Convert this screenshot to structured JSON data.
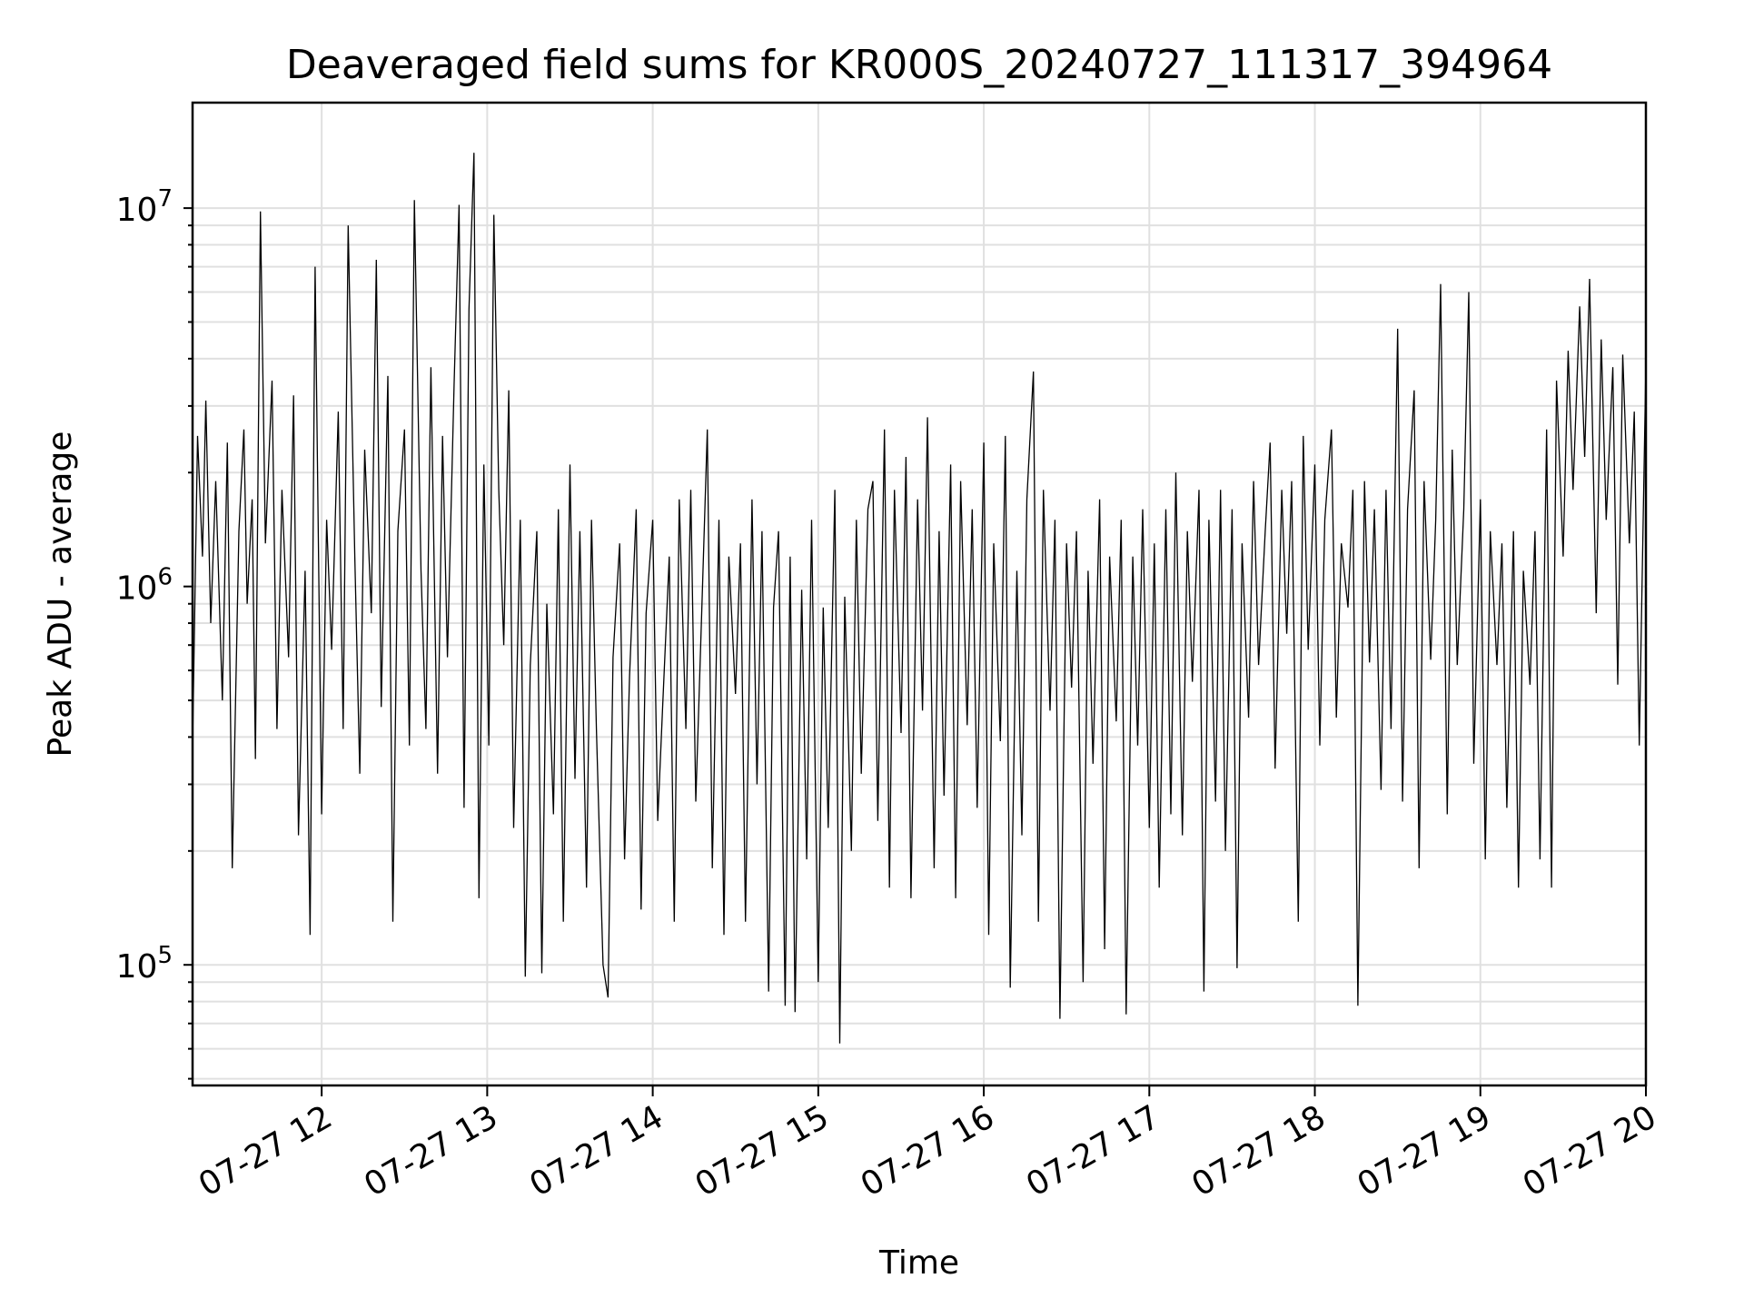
{
  "chart_data": {
    "type": "line",
    "title": "Deaveraged field sums for KR000S_20240727_111317_394964",
    "xlabel": "Time",
    "ylabel": "Peak ADU - average",
    "yscale": "log",
    "xlim": [
      11.22,
      20.0
    ],
    "ylim": [
      48000,
      19000000
    ],
    "grid": true,
    "x_ticks": [
      {
        "value": 12,
        "label": "07-27 12"
      },
      {
        "value": 13,
        "label": "07-27 13"
      },
      {
        "value": 14,
        "label": "07-27 14"
      },
      {
        "value": 15,
        "label": "07-27 15"
      },
      {
        "value": 16,
        "label": "07-27 16"
      },
      {
        "value": 17,
        "label": "07-27 17"
      },
      {
        "value": 18,
        "label": "07-27 18"
      },
      {
        "value": 19,
        "label": "07-27 19"
      },
      {
        "value": 20,
        "label": "07-27 20"
      }
    ],
    "y_ticks": [
      {
        "value": 100000,
        "base": "10",
        "exp": "5"
      },
      {
        "value": 1000000,
        "base": "10",
        "exp": "6"
      },
      {
        "value": 10000000,
        "base": "10",
        "exp": "7"
      }
    ],
    "series": [
      {
        "color": "#000000",
        "x": [
          11.22,
          11.25,
          11.28,
          11.3,
          11.33,
          11.36,
          11.4,
          11.43,
          11.46,
          11.5,
          11.53,
          11.55,
          11.58,
          11.6,
          11.63,
          11.66,
          11.7,
          11.73,
          11.76,
          11.8,
          11.83,
          11.86,
          11.9,
          11.93,
          11.96,
          12.0,
          12.03,
          12.06,
          12.1,
          12.13,
          12.16,
          12.2,
          12.23,
          12.26,
          12.3,
          12.33,
          12.36,
          12.4,
          12.43,
          12.46,
          12.5,
          12.53,
          12.56,
          12.6,
          12.63,
          12.66,
          12.7,
          12.73,
          12.76,
          12.8,
          12.83,
          12.86,
          12.89,
          12.92,
          12.95,
          12.98,
          13.01,
          13.04,
          13.07,
          13.1,
          13.13,
          13.16,
          13.2,
          13.23,
          13.26,
          13.3,
          13.33,
          13.36,
          13.4,
          13.43,
          13.46,
          13.5,
          13.53,
          13.56,
          13.6,
          13.63,
          13.66,
          13.7,
          13.73,
          13.76,
          13.8,
          13.83,
          13.86,
          13.9,
          13.93,
          13.96,
          14.0,
          14.03,
          14.06,
          14.1,
          14.13,
          14.16,
          14.2,
          14.23,
          14.26,
          14.3,
          14.33,
          14.36,
          14.4,
          14.43,
          14.46,
          14.5,
          14.53,
          14.56,
          14.6,
          14.63,
          14.66,
          14.7,
          14.73,
          14.76,
          14.8,
          14.83,
          14.86,
          14.9,
          14.93,
          14.96,
          15.0,
          15.03,
          15.06,
          15.1,
          15.13,
          15.16,
          15.2,
          15.23,
          15.26,
          15.3,
          15.33,
          15.36,
          15.4,
          15.43,
          15.46,
          15.5,
          15.53,
          15.56,
          15.6,
          15.63,
          15.66,
          15.7,
          15.73,
          15.76,
          15.8,
          15.83,
          15.86,
          15.9,
          15.93,
          15.96,
          16.0,
          16.03,
          16.06,
          16.1,
          16.13,
          16.16,
          16.2,
          16.23,
          16.26,
          16.3,
          16.33,
          16.36,
          16.4,
          16.43,
          16.46,
          16.5,
          16.53,
          16.56,
          16.6,
          16.63,
          16.66,
          16.7,
          16.73,
          16.76,
          16.8,
          16.83,
          16.86,
          16.9,
          16.93,
          16.96,
          17.0,
          17.03,
          17.06,
          17.1,
          17.13,
          17.16,
          17.2,
          17.23,
          17.26,
          17.3,
          17.33,
          17.36,
          17.4,
          17.43,
          17.46,
          17.5,
          17.53,
          17.56,
          17.6,
          17.63,
          17.66,
          17.7,
          17.73,
          17.76,
          17.8,
          17.83,
          17.86,
          17.9,
          17.93,
          17.96,
          18.0,
          18.03,
          18.06,
          18.1,
          18.13,
          18.16,
          18.2,
          18.23,
          18.26,
          18.3,
          18.33,
          18.36,
          18.4,
          18.43,
          18.46,
          18.5,
          18.53,
          18.56,
          18.6,
          18.63,
          18.66,
          18.7,
          18.73,
          18.76,
          18.8,
          18.83,
          18.86,
          18.9,
          18.93,
          18.96,
          19.0,
          19.03,
          19.06,
          19.1,
          19.13,
          19.16,
          19.2,
          19.23,
          19.26,
          19.3,
          19.33,
          19.36,
          19.4,
          19.43,
          19.46,
          19.5,
          19.53,
          19.56,
          19.6,
          19.63,
          19.66,
          19.7,
          19.73,
          19.76,
          19.8,
          19.83,
          19.86,
          19.9,
          19.93,
          19.96,
          20.0
        ],
        "y": [
          380000,
          2500000,
          1200000,
          3100000,
          800000,
          1900000,
          500000,
          2400000,
          180000,
          1400000,
          2600000,
          900000,
          1700000,
          350000,
          9800000,
          1300000,
          3500000,
          420000,
          1800000,
          650000,
          3200000,
          220000,
          1100000,
          120000,
          7000000,
          250000,
          1500000,
          680000,
          2900000,
          420000,
          9000000,
          1200000,
          320000,
          2300000,
          850000,
          7300000,
          480000,
          3600000,
          130000,
          1400000,
          2600000,
          380000,
          10500000,
          1100000,
          420000,
          3800000,
          320000,
          2500000,
          650000,
          3400000,
          10200000,
          260000,
          5400000,
          14000000,
          150000,
          2100000,
          380000,
          9600000,
          1800000,
          700000,
          3300000,
          230000,
          1500000,
          93000,
          620000,
          1400000,
          95000,
          900000,
          250000,
          1600000,
          130000,
          2100000,
          310000,
          1400000,
          160000,
          1500000,
          420000,
          100000,
          82000,
          650000,
          1300000,
          190000,
          580000,
          1600000,
          140000,
          850000,
          1500000,
          240000,
          480000,
          1200000,
          130000,
          1700000,
          420000,
          1800000,
          270000,
          980000,
          2600000,
          180000,
          1500000,
          120000,
          1200000,
          520000,
          1300000,
          130000,
          1700000,
          300000,
          1400000,
          85000,
          880000,
          1400000,
          78000,
          1200000,
          75000,
          980000,
          190000,
          1500000,
          90000,
          880000,
          230000,
          1800000,
          62000,
          940000,
          200000,
          1500000,
          320000,
          1600000,
          1900000,
          240000,
          2600000,
          160000,
          1800000,
          410000,
          2200000,
          150000,
          1700000,
          470000,
          2800000,
          180000,
          1400000,
          280000,
          2100000,
          150000,
          1900000,
          430000,
          1600000,
          260000,
          2400000,
          120000,
          1300000,
          390000,
          2500000,
          87000,
          1100000,
          220000,
          1700000,
          3700000,
          130000,
          1800000,
          470000,
          1500000,
          72000,
          1300000,
          540000,
          1400000,
          90000,
          1100000,
          340000,
          1700000,
          110000,
          1200000,
          440000,
          1500000,
          74000,
          1200000,
          380000,
          1600000,
          230000,
          1300000,
          160000,
          1600000,
          250000,
          2000000,
          220000,
          1400000,
          560000,
          1800000,
          85000,
          1500000,
          270000,
          1800000,
          200000,
          1600000,
          98000,
          1300000,
          450000,
          1900000,
          620000,
          1400000,
          2400000,
          330000,
          1800000,
          750000,
          1900000,
          130000,
          2500000,
          680000,
          2100000,
          380000,
          1500000,
          2600000,
          450000,
          1300000,
          880000,
          1800000,
          78000,
          1900000,
          630000,
          1600000,
          290000,
          1800000,
          420000,
          4800000,
          270000,
          1600000,
          3300000,
          180000,
          1900000,
          640000,
          1500000,
          6300000,
          250000,
          2300000,
          620000,
          1600000,
          6000000,
          340000,
          1700000,
          190000,
          1400000,
          620000,
          1300000,
          260000,
          1400000,
          160000,
          1100000,
          550000,
          1400000,
          190000,
          2600000,
          160000,
          3500000,
          1200000,
          4200000,
          1800000,
          5500000,
          2200000,
          6500000,
          850000,
          4500000,
          1500000,
          3800000,
          550000,
          4100000,
          1300000,
          2900000,
          380000,
          3900000
        ]
      }
    ]
  }
}
